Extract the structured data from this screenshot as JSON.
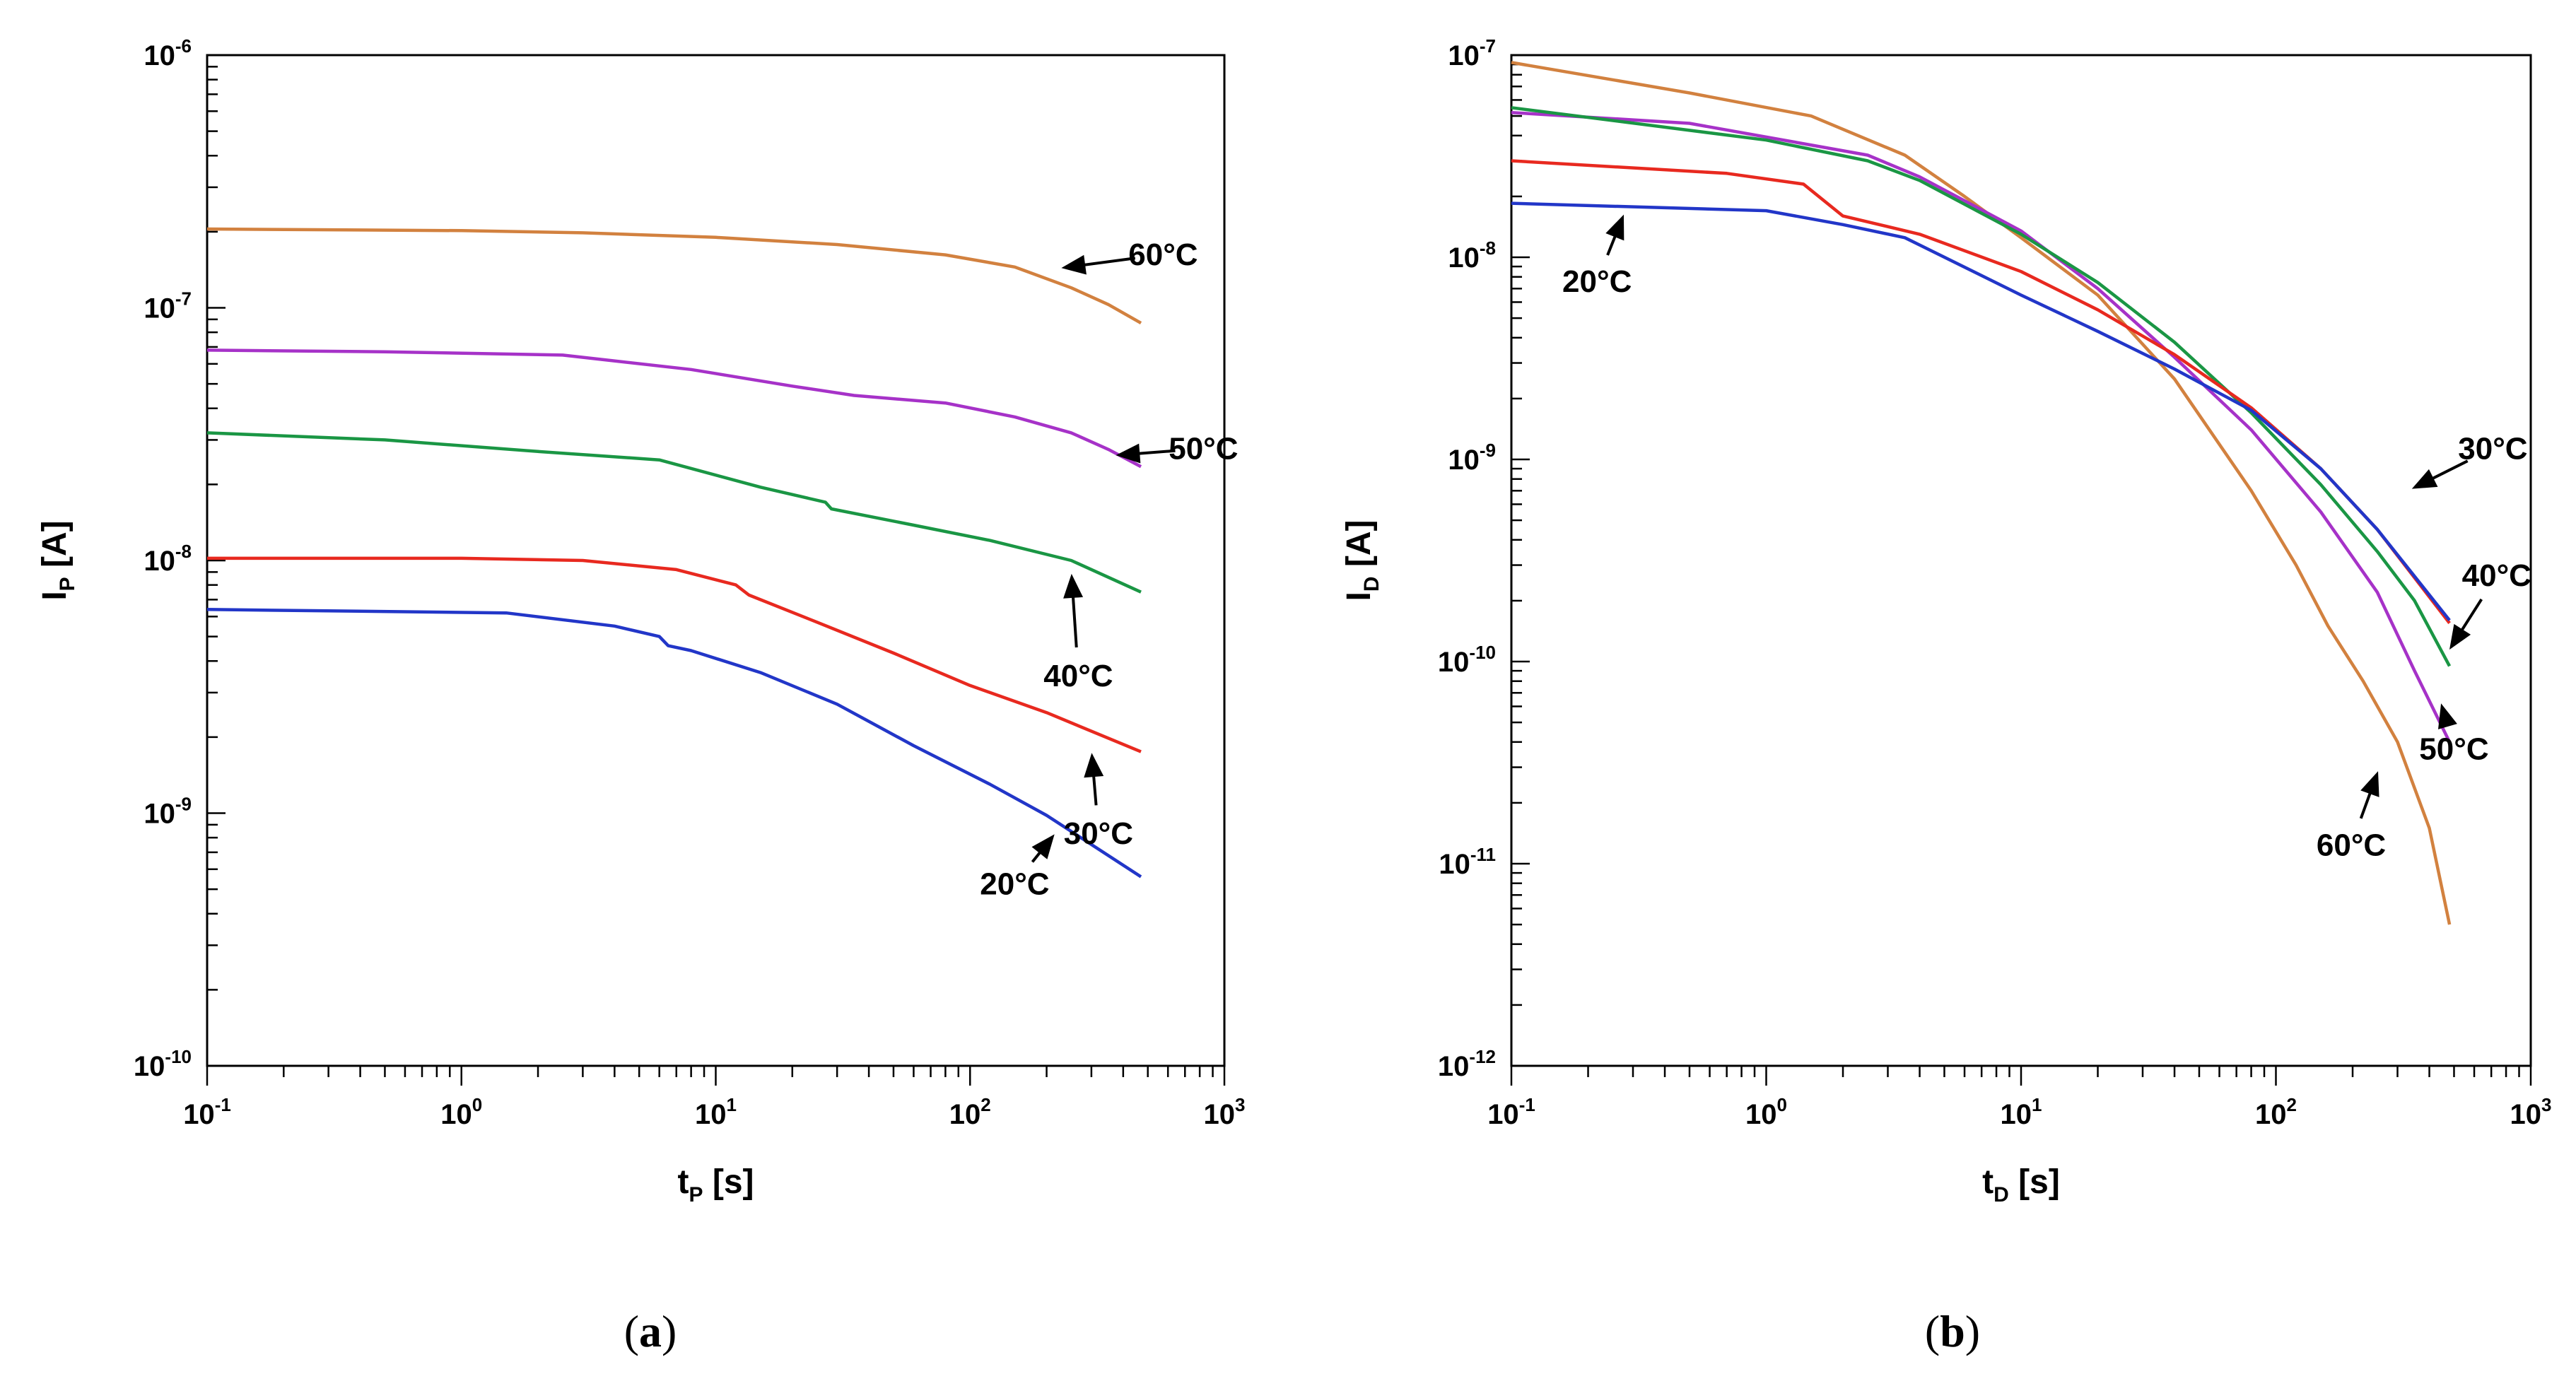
{
  "chart_data": [
    {
      "type": "line",
      "panel": "(a)",
      "caption": "a",
      "xlabel_main": "t",
      "xlabel_sub": "P",
      "xlabel_unit": " [s]",
      "ylabel_main": "I",
      "ylabel_sub": "P",
      "ylabel_unit": " [A]",
      "xscale": "log",
      "yscale": "log",
      "xlim": [
        0.1,
        1000
      ],
      "ylim": [
        1e-10,
        1e-06
      ],
      "x_ticks": [
        {
          "base": "10",
          "exp": "-1",
          "value": 0.1
        },
        {
          "base": "10",
          "exp": "0",
          "value": 1
        },
        {
          "base": "10",
          "exp": "1",
          "value": 10
        },
        {
          "base": "10",
          "exp": "2",
          "value": 100
        },
        {
          "base": "10",
          "exp": "3",
          "value": 1000
        }
      ],
      "y_ticks": [
        {
          "base": "10",
          "exp": "-10",
          "value": 1e-10
        },
        {
          "base": "10",
          "exp": "-9",
          "value": 1e-09
        },
        {
          "base": "10",
          "exp": "-8",
          "value": 1e-08
        },
        {
          "base": "10",
          "exp": "-7",
          "value": 1e-07
        },
        {
          "base": "10",
          "exp": "-6",
          "value": 1e-06
        }
      ],
      "series": [
        {
          "name": "60°C",
          "color": "#d2813f",
          "x": [
            0.1,
            1,
            3,
            10,
            30,
            80,
            150,
            250,
            350,
            470
          ],
          "y": [
            2.05e-07,
            2.02e-07,
            1.98e-07,
            1.9e-07,
            1.78e-07,
            1.62e-07,
            1.45e-07,
            1.2e-07,
            1.03e-07,
            8.7e-08
          ]
        },
        {
          "name": "50°C",
          "color": "#a632c8",
          "x": [
            0.1,
            0.5,
            2.5,
            8,
            20,
            35,
            80,
            150,
            250,
            350,
            470
          ],
          "y": [
            6.8e-08,
            6.7e-08,
            6.5e-08,
            5.7e-08,
            4.9e-08,
            4.5e-08,
            4.2e-08,
            3.7e-08,
            3.2e-08,
            2.75e-08,
            2.35e-08
          ]
        },
        {
          "name": "40°C",
          "color": "#1a9644",
          "x": [
            0.1,
            0.5,
            2,
            6,
            15,
            27,
            28.5,
            60,
            120,
            250,
            470
          ],
          "y": [
            3.2e-08,
            3e-08,
            2.7e-08,
            2.5e-08,
            1.95e-08,
            1.7e-08,
            1.6e-08,
            1.38e-08,
            1.2e-08,
            1e-08,
            7.5e-09
          ]
        },
        {
          "name": "30°C",
          "color": "#e8291f",
          "x": [
            0.1,
            1,
            3,
            7,
            12,
            13.5,
            25,
            50,
            100,
            200,
            470
          ],
          "y": [
            1.02e-08,
            1.02e-08,
            1e-08,
            9.2e-09,
            8e-09,
            7.3e-09,
            5.7e-09,
            4.3e-09,
            3.2e-09,
            2.5e-09,
            1.75e-09
          ]
        },
        {
          "name": "20°C",
          "color": "#2236c8",
          "x": [
            0.1,
            1.5,
            4,
            6,
            6.5,
            8,
            15,
            30,
            60,
            120,
            200,
            470
          ],
          "y": [
            6.4e-09,
            6.2e-09,
            5.5e-09,
            5e-09,
            4.6e-09,
            4.4e-09,
            3.6e-09,
            2.7e-09,
            1.85e-09,
            1.3e-09,
            9.8e-10,
            5.6e-10
          ]
        }
      ],
      "annotations": [
        {
          "text": "60°C",
          "target_x": 220,
          "target_y": 1.43e-07
        },
        {
          "text": "50°C",
          "target_x": 360,
          "target_y": 2.6e-08
        },
        {
          "text": "40°C",
          "target_x": 250,
          "target_y": 9.2e-09
        },
        {
          "text": "30°C",
          "target_x": 300,
          "target_y": 1.8e-09
        },
        {
          "text": "20°C",
          "target_x": 220,
          "target_y": 8.5e-10
        }
      ]
    },
    {
      "type": "line",
      "panel": "(b)",
      "caption": "b",
      "xlabel_main": "t",
      "xlabel_sub": "D",
      "xlabel_unit": " [s]",
      "ylabel_main": "I",
      "ylabel_sub": "D",
      "ylabel_unit": " [A]",
      "xscale": "log",
      "yscale": "log",
      "xlim": [
        0.1,
        1000
      ],
      "ylim": [
        1e-12,
        1e-07
      ],
      "x_ticks": [
        {
          "base": "10",
          "exp": "-1",
          "value": 0.1
        },
        {
          "base": "10",
          "exp": "0",
          "value": 1
        },
        {
          "base": "10",
          "exp": "1",
          "value": 10
        },
        {
          "base": "10",
          "exp": "2",
          "value": 100
        },
        {
          "base": "10",
          "exp": "3",
          "value": 1000
        }
      ],
      "y_ticks": [
        {
          "base": "10",
          "exp": "-12",
          "value": 1e-12
        },
        {
          "base": "10",
          "exp": "-11",
          "value": 1e-11
        },
        {
          "base": "10",
          "exp": "-10",
          "value": 1e-10
        },
        {
          "base": "10",
          "exp": "-9",
          "value": 1e-09
        },
        {
          "base": "10",
          "exp": "-8",
          "value": 1e-08
        },
        {
          "base": "10",
          "exp": "-7",
          "value": 1e-07
        }
      ],
      "series": [
        {
          "name": "60°C",
          "color": "#d2813f",
          "noise_tail_color": "#e8612a",
          "x": [
            0.1,
            0.5,
            1.5,
            3.5,
            6,
            10,
            20,
            40,
            80,
            120,
            160,
            220,
            300,
            400,
            480
          ],
          "y": [
            9.2e-08,
            6.5e-08,
            5e-08,
            3.2e-08,
            2e-08,
            1.25e-08,
            6.5e-09,
            2.5e-09,
            7e-10,
            3e-10,
            1.5e-10,
            8e-11,
            4e-11,
            1.5e-11,
            5e-12
          ]
        },
        {
          "name": "50°C",
          "color": "#a632c8",
          "x": [
            0.1,
            0.5,
            2.5,
            4,
            10,
            20,
            40,
            80,
            150,
            250,
            350,
            480
          ],
          "y": [
            5.2e-08,
            4.6e-08,
            3.2e-08,
            2.5e-08,
            1.35e-08,
            7e-09,
            3.2e-09,
            1.4e-09,
            5.5e-10,
            2.2e-10,
            9e-11,
            4e-11
          ]
        },
        {
          "name": "40°C",
          "color": "#1a9644",
          "x": [
            0.1,
            1,
            2.5,
            4,
            10,
            20,
            40,
            80,
            150,
            250,
            350,
            480
          ],
          "y": [
            5.5e-08,
            3.8e-08,
            3e-08,
            2.4e-08,
            1.3e-08,
            7.5e-09,
            3.8e-09,
            1.7e-09,
            7.5e-10,
            3.5e-10,
            2e-10,
            9.5e-11
          ]
        },
        {
          "name": "30°C",
          "color": "#e8291f",
          "x": [
            0.1,
            0.7,
            1.4,
            2,
            4,
            10,
            20,
            40,
            80,
            150,
            250,
            480
          ],
          "y": [
            3e-08,
            2.6e-08,
            2.3e-08,
            1.6e-08,
            1.3e-08,
            8.5e-09,
            5.5e-09,
            3.3e-09,
            1.8e-09,
            9e-10,
            4.5e-10,
            1.55e-10
          ]
        },
        {
          "name": "20°C",
          "color": "#2236c8",
          "x": [
            0.1,
            1,
            2,
            3.5,
            4,
            10,
            20,
            40,
            80,
            150,
            250,
            480
          ],
          "y": [
            1.85e-08,
            1.7e-08,
            1.45e-08,
            1.25e-08,
            1.15e-08,
            6.5e-09,
            4.3e-09,
            2.8e-09,
            1.75e-09,
            9e-10,
            4.5e-10,
            1.6e-10
          ]
        }
      ],
      "annotations": [
        {
          "text": "20°C",
          "target_x": 0.28,
          "target_y": 1.7e-08
        },
        {
          "text": "30°C",
          "target_x": 330,
          "target_y": 7e-10
        },
        {
          "text": "40°C",
          "target_x": 470,
          "target_y": 1.1e-10
        },
        {
          "text": "50°C",
          "target_x": 440,
          "target_y": 6.5e-11
        },
        {
          "text": "60°C",
          "target_x": 255,
          "target_y": 3e-11
        }
      ]
    }
  ]
}
